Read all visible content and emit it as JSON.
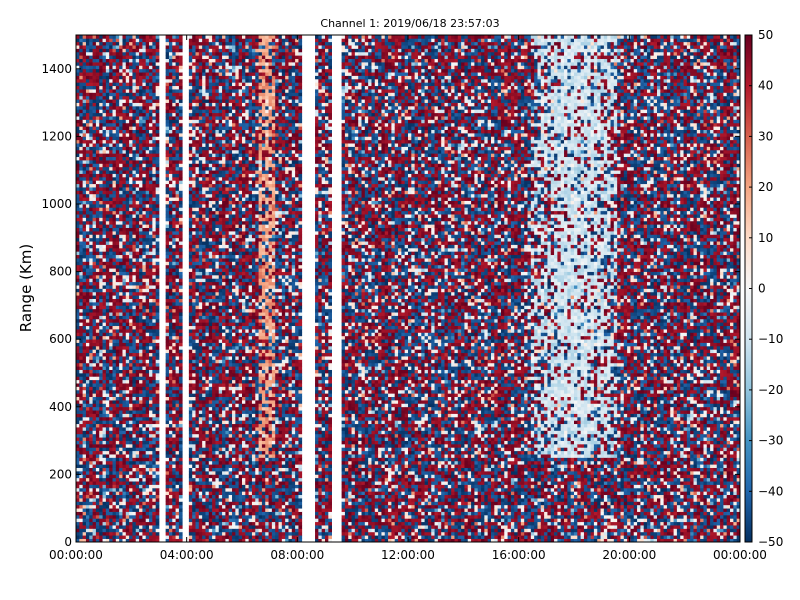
{
  "chart_data": {
    "type": "heatmap",
    "title": "Channel 1: 2019/06/18 23:57:03",
    "xlabel": "",
    "ylabel": "Range (Km)",
    "x_tick_labels": [
      "00:00:00",
      "04:00:00",
      "08:00:00",
      "12:00:00",
      "16:00:00",
      "20:00:00",
      "00:00:00"
    ],
    "x_range_hours": [
      0,
      24
    ],
    "y_ticks": [
      0,
      200,
      400,
      600,
      800,
      1000,
      1200,
      1400
    ],
    "ylim": [
      0,
      1500
    ],
    "colorbar": {
      "ticks": [
        50,
        40,
        30,
        20,
        10,
        0,
        -10,
        -20,
        -30,
        -40,
        -50
      ],
      "range": [
        -50,
        50
      ],
      "colormap": "RdBu_r",
      "colors": [
        "#053061",
        "#2166ac",
        "#4393c3",
        "#92c5de",
        "#d1e5f0",
        "#f7f7f7",
        "#fddbc7",
        "#f4a582",
        "#d6604d",
        "#b2182b",
        "#67001f"
      ]
    },
    "gaps_hours": [
      [
        3.05,
        3.2
      ],
      [
        3.9,
        4.05
      ],
      [
        8.2,
        8.6
      ],
      [
        9.2,
        9.6
      ]
    ],
    "features": [
      {
        "description": "positive velocity band",
        "x_hours": 6.9,
        "range_km": [
          250,
          1500
        ],
        "peak_value": 20
      },
      {
        "description": "near-zero velocity region",
        "x_hours": [
          16.5,
          19.5
        ],
        "range_km": [
          250,
          1500
        ],
        "peak_value": -15
      }
    ],
    "grid": false
  }
}
